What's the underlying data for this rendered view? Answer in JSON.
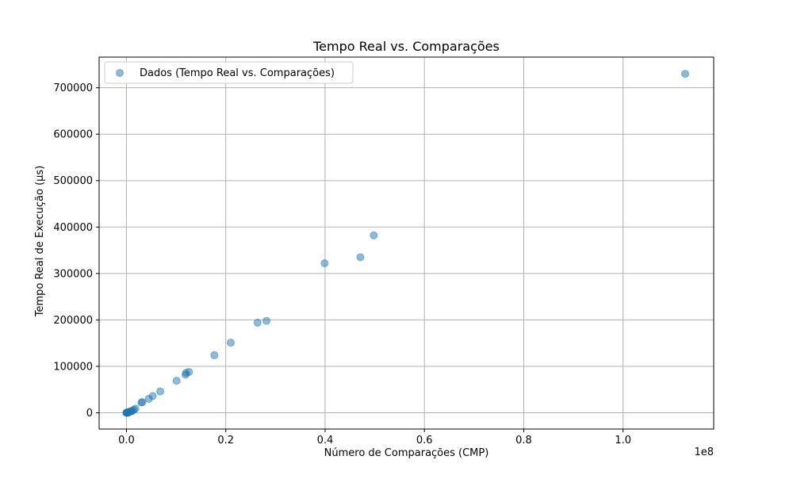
{
  "chart_data": {
    "type": "scatter",
    "title": "Tempo Real vs. Comparações",
    "xlabel": "Número de Comparações (CMP)",
    "ylabel": "Tempo Real de Execução (µs)",
    "x_offset_text": "1e8",
    "xlim": [
      -0.055,
      1.1825
    ],
    "ylim": [
      -35000,
      766000
    ],
    "xticks": [
      0,
      0.2,
      0.4,
      0.6,
      0.8,
      1.0
    ],
    "xtick_labels": [
      "0.0",
      "0.2",
      "0.4",
      "0.6",
      "0.8",
      "1.0"
    ],
    "yticks": [
      0,
      100000,
      200000,
      300000,
      400000,
      500000,
      600000,
      700000
    ],
    "ytick_labels": [
      "0",
      "100000",
      "200000",
      "300000",
      "400000",
      "500000",
      "600000",
      "700000"
    ],
    "grid": true,
    "legend_position": "upper-left",
    "marker_color": "#1f77b4",
    "marker_alpha": 0.5,
    "series": [
      {
        "name": "Dados (Tempo Real vs. Comparações)",
        "points": [
          [
            0.0,
            0
          ],
          [
            0.0,
            200
          ],
          [
            0.001,
            400
          ],
          [
            0.001,
            100
          ],
          [
            0.002,
            800
          ],
          [
            0.002,
            300
          ],
          [
            0.003,
            1200
          ],
          [
            0.004,
            600
          ],
          [
            0.005,
            1500
          ],
          [
            0.006,
            2000
          ],
          [
            0.008,
            2500
          ],
          [
            0.01,
            3500
          ],
          [
            0.012,
            4200
          ],
          [
            0.015,
            6500
          ],
          [
            0.018,
            9000
          ],
          [
            0.03,
            22000
          ],
          [
            0.032,
            23000
          ],
          [
            0.045,
            30000
          ],
          [
            0.053,
            36000
          ],
          [
            0.068,
            46000
          ],
          [
            0.101,
            69000
          ],
          [
            0.119,
            82000
          ],
          [
            0.12,
            86000
          ],
          [
            0.126,
            88000
          ],
          [
            0.177,
            124000
          ],
          [
            0.21,
            151000
          ],
          [
            0.264,
            194000
          ],
          [
            0.282,
            198000
          ],
          [
            0.399,
            322000
          ],
          [
            0.471,
            335000
          ],
          [
            0.498,
            382000
          ],
          [
            1.125,
            730000
          ]
        ]
      }
    ]
  }
}
